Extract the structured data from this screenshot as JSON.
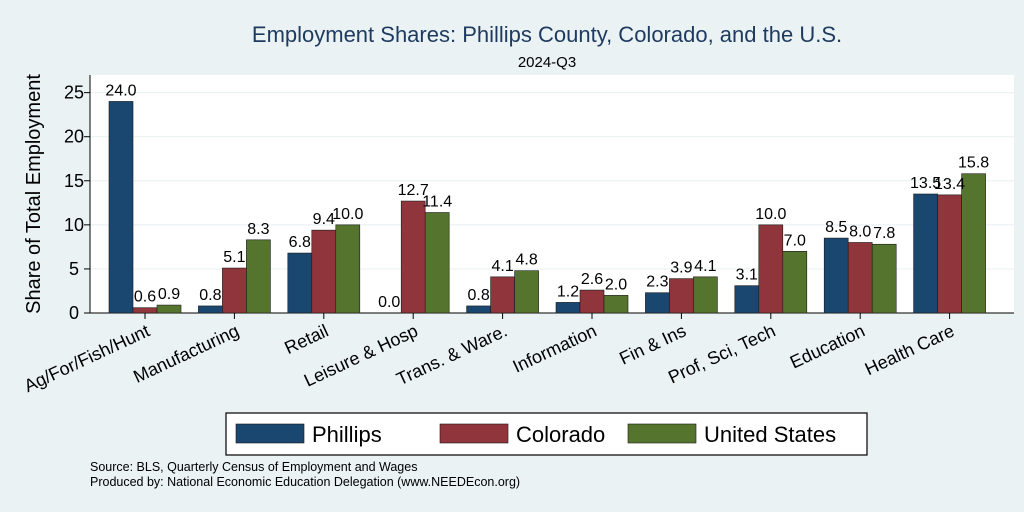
{
  "chart_data": {
    "type": "bar",
    "title": "Employment Shares: Phillips County, Colorado, and the U.S.",
    "subtitle": "2024-Q3",
    "ylabel": "Share of Total Employment",
    "xlabel": "",
    "ylim": [
      0,
      27
    ],
    "yticks": [
      0,
      5,
      10,
      15,
      20,
      25
    ],
    "grid": true,
    "legend_position": "bottom",
    "categories": [
      "Ag/For/Fish/Hunt",
      "Manufacturing",
      "Retail",
      "Leisure & Hosp",
      "Trans. & Ware.",
      "Information",
      "Fin & Ins",
      "Prof, Sci, Tech",
      "Education",
      "Health Care"
    ],
    "series": [
      {
        "name": "Phillips",
        "color": "#1a476f",
        "values": [
          24.0,
          0.8,
          6.8,
          0.0,
          0.8,
          1.2,
          2.3,
          3.1,
          8.5,
          13.5
        ]
      },
      {
        "name": "Colorado",
        "color": "#90353b",
        "values": [
          0.6,
          5.1,
          9.4,
          12.7,
          4.1,
          2.6,
          3.9,
          10.0,
          8.0,
          13.4
        ]
      },
      {
        "name": "United States",
        "color": "#55752f",
        "values": [
          0.9,
          8.3,
          10.0,
          11.4,
          4.8,
          2.0,
          4.1,
          7.0,
          7.8,
          15.8
        ]
      }
    ]
  },
  "notes": {
    "source": "Source: BLS, Quarterly Census of Employment and Wages",
    "produced_by": "Produced by: National Economic Education Delegation (www.NEEDEcon.org)"
  }
}
